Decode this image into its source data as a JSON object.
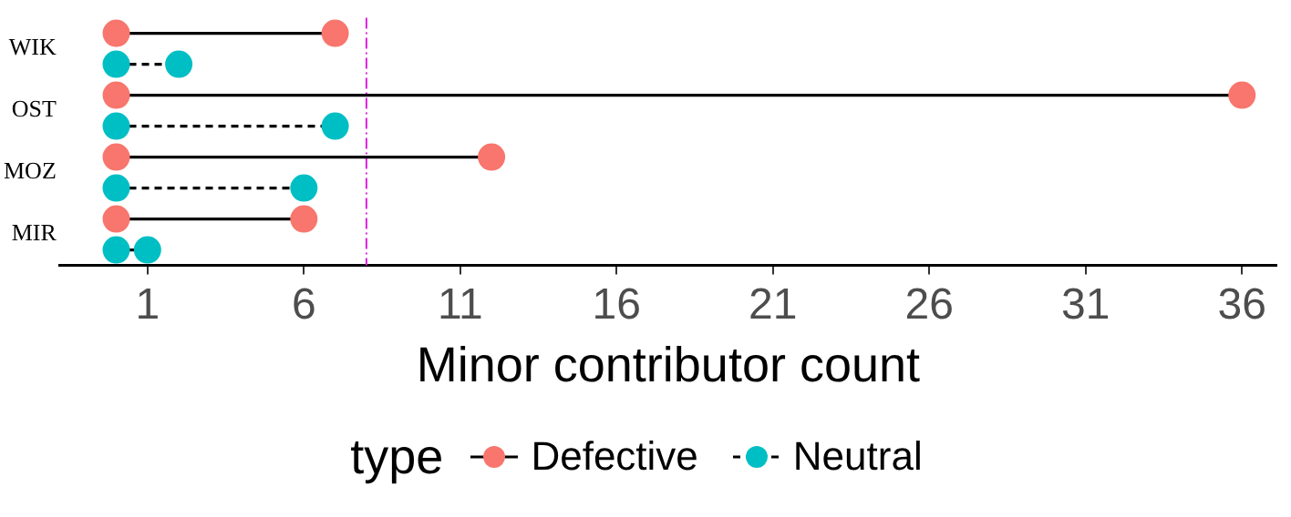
{
  "chart_data": {
    "type": "lollipop",
    "orientation": "horizontal",
    "xlabel": "Minor contributor count",
    "legend_title": "type",
    "legend": "bottom",
    "grid": false,
    "marker": "circle",
    "categories": [
      "WIK",
      "OST",
      "MOZ",
      "MIR"
    ],
    "series": [
      {
        "name": "Defective",
        "color": "#f8766d",
        "line_style": "solid",
        "values": [
          7,
          36,
          12,
          6
        ]
      },
      {
        "name": "Neutral",
        "color": "#00bfc4",
        "line_style": "dashed",
        "values": [
          2,
          7,
          6,
          1
        ]
      },
      {
        "type": "scatter",
        "color": "#f8766d",
        "values": [
          0,
          0,
          0,
          0
        ]
      },
      {
        "type": "scatter",
        "color": "#00bfc4",
        "values": [
          0,
          0,
          0,
          0
        ]
      }
    ],
    "xlim": [
      -1.8,
      37.1
    ],
    "xticks": [
      1,
      6,
      11,
      16,
      21,
      26,
      31,
      36
    ],
    "ref_lines": [
      {
        "axis": "x",
        "value": 8,
        "color": "#dd22dd",
        "line_style": "dashed"
      }
    ]
  }
}
